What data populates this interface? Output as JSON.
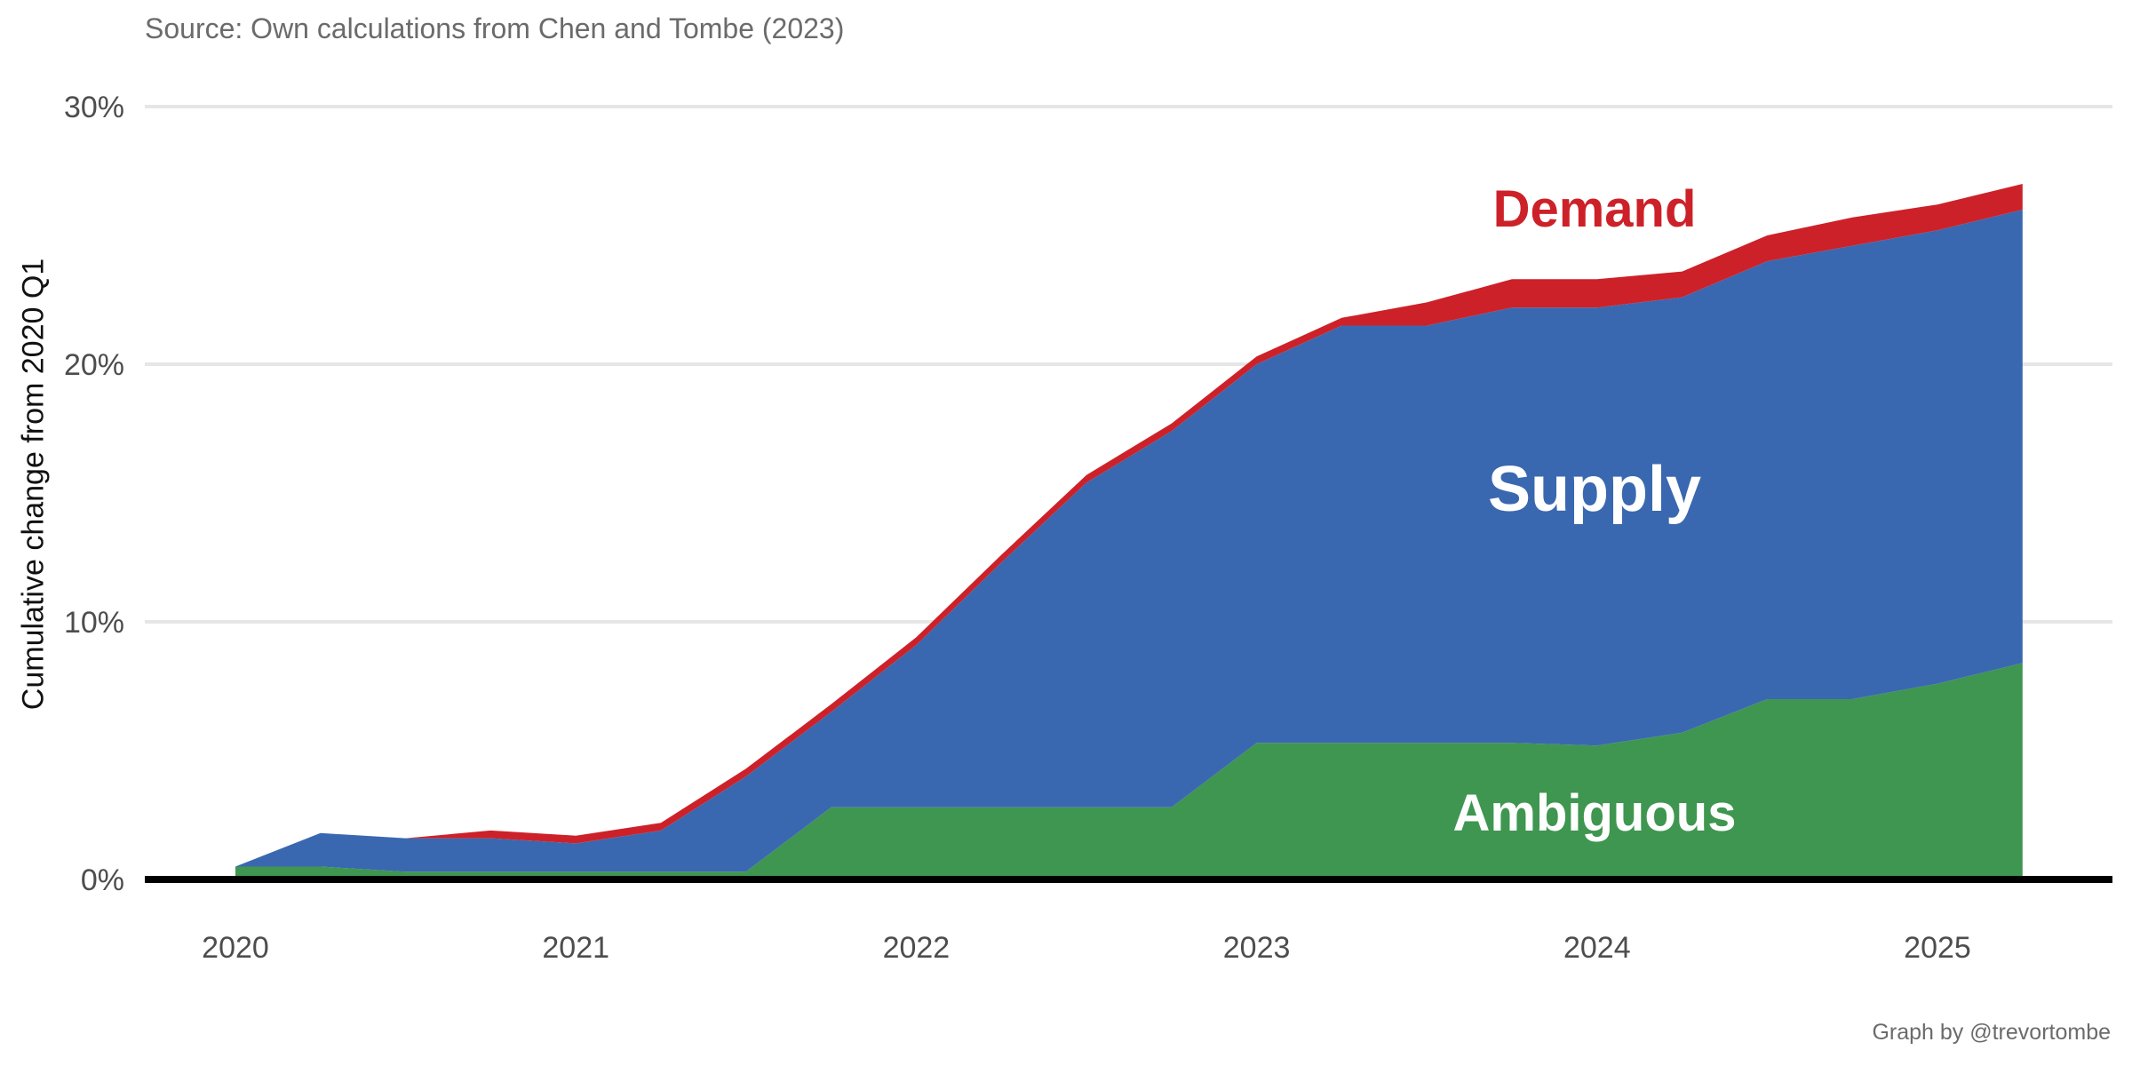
{
  "source_note": "Source: Own calculations from Chen and Tombe (2023)",
  "credit": "Graph by @trevortombe",
  "colors": {
    "ambiguous": "#3f9650",
    "supply": "#3a68b0",
    "demand": "#cd2129",
    "grid": "#e6e6e6"
  },
  "chart_data": {
    "type": "area",
    "stacked": true,
    "ylabel": "Cumulative change from 2020 Q1",
    "xlabel": "",
    "x_ticks": [
      "2020",
      "2021",
      "2022",
      "2023",
      "2024",
      "2025"
    ],
    "y_ticks": [
      "0%",
      "10%",
      "20%",
      "30%"
    ],
    "ylim": [
      0,
      30
    ],
    "grid": true,
    "x": [
      "2020 Q1",
      "2020 Q2",
      "2020 Q3",
      "2020 Q4",
      "2021 Q1",
      "2021 Q2",
      "2021 Q3",
      "2021 Q4",
      "2022 Q1",
      "2022 Q2",
      "2022 Q3",
      "2022 Q4",
      "2023 Q1",
      "2023 Q2",
      "2023 Q3",
      "2023 Q4",
      "2024 Q1",
      "2024 Q2",
      "2024 Q3",
      "2024 Q4",
      "2025 Q1",
      "2025 Q2"
    ],
    "series": [
      {
        "name": "Ambiguous",
        "color": "#3f9650",
        "values": [
          0.5,
          0.5,
          0.3,
          0.3,
          0.3,
          0.3,
          0.3,
          2.8,
          2.8,
          2.8,
          2.8,
          2.8,
          5.3,
          5.3,
          5.3,
          5.3,
          5.2,
          5.7,
          7.0,
          7.0,
          7.6,
          8.4
        ]
      },
      {
        "name": "Supply",
        "color": "#3a68b0",
        "values": [
          0.0,
          1.3,
          1.3,
          1.3,
          1.1,
          1.6,
          3.7,
          3.7,
          6.3,
          9.5,
          12.6,
          14.6,
          14.7,
          16.2,
          16.2,
          16.9,
          17.0,
          16.9,
          17.0,
          17.6,
          17.6,
          17.6
        ]
      },
      {
        "name": "Demand",
        "color": "#cd2129",
        "values": [
          0.0,
          0.0,
          0.0,
          0.3,
          0.3,
          0.3,
          0.3,
          0.3,
          0.3,
          0.3,
          0.3,
          0.3,
          0.3,
          0.3,
          0.9,
          1.1,
          1.1,
          1.0,
          1.0,
          1.1,
          1.0,
          1.0
        ]
      }
    ],
    "labels": [
      {
        "series": "Demand",
        "text": "Demand"
      },
      {
        "series": "Supply",
        "text": "Supply"
      },
      {
        "series": "Ambiguous",
        "text": "Ambiguous"
      }
    ]
  }
}
